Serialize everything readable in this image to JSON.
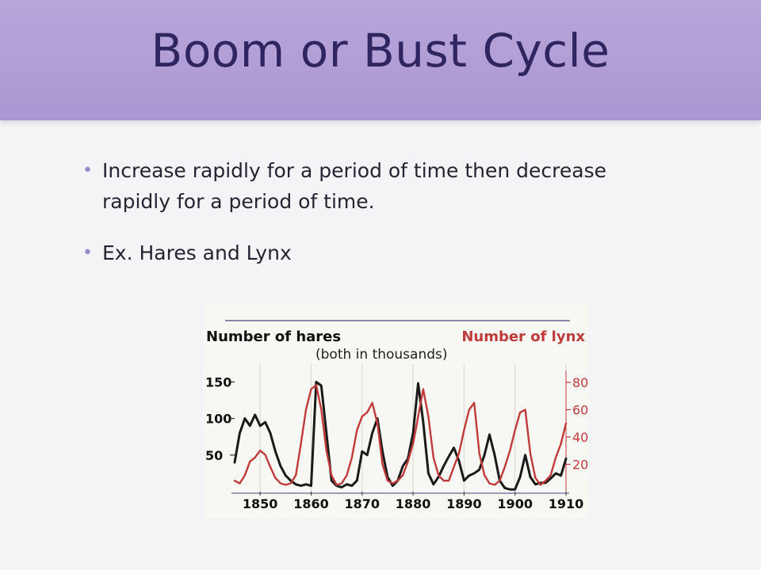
{
  "slide": {
    "title": "Boom or Bust Cycle",
    "bullets": [
      {
        "text": "Increase rapidly for a period of time then decrease rapidly for a period of time."
      },
      {
        "text": "Ex. Hares and Lynx"
      }
    ],
    "bullet_glyph": "•",
    "colors": {
      "title_band": "#ab97d2",
      "title_text": "#2f2560",
      "bullet": "#9b87cb",
      "hares": "#1a1a1a",
      "lynx": "#c23b3b"
    }
  },
  "chart_data": {
    "type": "line",
    "legend_left": "Number of hares",
    "legend_right": "Number of lynx",
    "subtitle": "(both in thousands)",
    "x_ticks": [
      "1850",
      "1860",
      "1870",
      "1880",
      "1890",
      "1900",
      "1910"
    ],
    "y_left_ticks": [
      "150",
      "100",
      "50"
    ],
    "y_right_ticks": [
      "80",
      "60",
      "40",
      "20"
    ],
    "xlim": [
      1845,
      1910
    ],
    "ylim_left": [
      0,
      170
    ],
    "ylim_right": [
      0,
      91
    ],
    "series": [
      {
        "name": "Number of hares",
        "axis": "left",
        "color": "#1a1a1a",
        "x": [
          1845,
          1846,
          1847,
          1848,
          1849,
          1850,
          1851,
          1852,
          1853,
          1854,
          1855,
          1856,
          1857,
          1858,
          1859,
          1860,
          1861,
          1862,
          1863,
          1864,
          1865,
          1866,
          1867,
          1868,
          1869,
          1870,
          1871,
          1872,
          1873,
          1874,
          1875,
          1876,
          1877,
          1878,
          1879,
          1880,
          1881,
          1882,
          1883,
          1884,
          1885,
          1886,
          1887,
          1888,
          1889,
          1890,
          1891,
          1892,
          1893,
          1894,
          1895,
          1896,
          1897,
          1898,
          1899,
          1900,
          1901,
          1902,
          1903,
          1904,
          1905,
          1906,
          1907,
          1908,
          1909,
          1910
        ],
        "y": [
          40,
          80,
          100,
          90,
          105,
          90,
          95,
          80,
          55,
          35,
          22,
          15,
          10,
          8,
          10,
          8,
          150,
          145,
          80,
          15,
          8,
          6,
          10,
          8,
          15,
          55,
          50,
          80,
          100,
          55,
          20,
          8,
          15,
          35,
          45,
          80,
          148,
          95,
          25,
          10,
          20,
          35,
          48,
          60,
          42,
          15,
          22,
          25,
          30,
          50,
          78,
          50,
          15,
          5,
          3,
          3,
          20,
          50,
          20,
          10,
          12,
          12,
          18,
          25,
          22,
          45
        ]
      },
      {
        "name": "Number of lynx",
        "axis": "right",
        "color": "#c23b3b",
        "x": [
          1845,
          1846,
          1847,
          1848,
          1849,
          1850,
          1851,
          1852,
          1853,
          1854,
          1855,
          1856,
          1857,
          1858,
          1859,
          1860,
          1861,
          1862,
          1863,
          1864,
          1865,
          1866,
          1867,
          1868,
          1869,
          1870,
          1871,
          1872,
          1873,
          1874,
          1875,
          1876,
          1877,
          1878,
          1879,
          1880,
          1881,
          1882,
          1883,
          1884,
          1885,
          1886,
          1887,
          1888,
          1889,
          1890,
          1891,
          1892,
          1893,
          1894,
          1895,
          1896,
          1897,
          1898,
          1899,
          1900,
          1901,
          1902,
          1903,
          1904,
          1905,
          1906,
          1907,
          1908,
          1909,
          1910
        ],
        "y": [
          8,
          6,
          12,
          22,
          25,
          30,
          27,
          18,
          10,
          6,
          5,
          6,
          12,
          35,
          60,
          75,
          78,
          60,
          30,
          12,
          5,
          6,
          12,
          25,
          45,
          55,
          58,
          65,
          50,
          20,
          8,
          6,
          8,
          12,
          22,
          35,
          55,
          75,
          55,
          25,
          12,
          8,
          8,
          18,
          28,
          45,
          60,
          65,
          28,
          12,
          6,
          5,
          8,
          18,
          30,
          45,
          58,
          60,
          28,
          10,
          5,
          8,
          12,
          25,
          35,
          50
        ]
      }
    ]
  }
}
